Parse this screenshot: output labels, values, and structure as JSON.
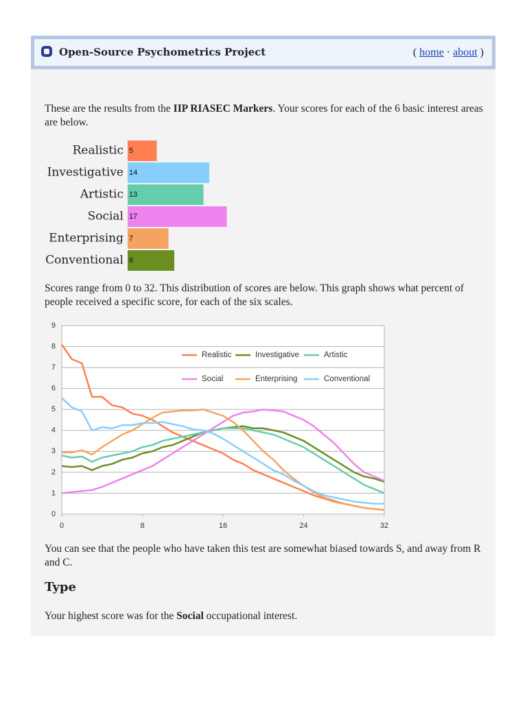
{
  "header": {
    "title": "Open-Source Psychometrics Project",
    "open": "(",
    "home": "home",
    "separator": "·",
    "about": "about",
    "close": ")"
  },
  "intro": {
    "before": "These are the results from the ",
    "bold": "IIP RIASEC Markers",
    "after": ". Your scores for each of the 6 basic interest areas are below."
  },
  "range_text": "Scores range from 0 to 32. This distribution of scores are below. This graph shows what percent of people received a specific score, for each of the six scales.",
  "bias_text": "You can see that the people who have taken this test are somewhat biased towards S, and away from R and C.",
  "type_heading": "Type",
  "result": {
    "before": "Your highest score was for the ",
    "bold": "Social",
    "after": " occupational interest."
  },
  "chart_data": [
    {
      "type": "bar",
      "orientation": "horizontal",
      "categories": [
        "Realistic",
        "Investigative",
        "Artistic",
        "Social",
        "Enterprising",
        "Conventional"
      ],
      "values": [
        5,
        14,
        13,
        17,
        7,
        8
      ],
      "colors": [
        "#ff7f50",
        "#87cefa",
        "#66cdaa",
        "#ee82ee",
        "#f4a460",
        "#6b8e23"
      ],
      "xlim": [
        0,
        32
      ]
    },
    {
      "type": "line",
      "x": [
        0,
        1,
        2,
        3,
        4,
        5,
        6,
        7,
        8,
        9,
        10,
        11,
        12,
        13,
        14,
        15,
        16,
        17,
        18,
        19,
        20,
        21,
        22,
        23,
        24,
        25,
        26,
        27,
        28,
        29,
        30,
        31,
        32
      ],
      "series": [
        {
          "name": "Realistic",
          "color": "#ff7f50",
          "values": [
            8.1,
            7.4,
            7.2,
            5.6,
            5.6,
            5.2,
            5.1,
            4.8,
            4.7,
            4.5,
            4.2,
            3.9,
            3.7,
            3.5,
            3.3,
            3.1,
            2.9,
            2.6,
            2.4,
            2.1,
            1.9,
            1.7,
            1.5,
            1.3,
            1.1,
            0.9,
            0.75,
            0.6,
            0.5,
            0.4,
            0.3,
            0.25,
            0.2
          ]
        },
        {
          "name": "Investigative",
          "color": "#6b8e23",
          "values": [
            2.3,
            2.25,
            2.3,
            2.1,
            2.3,
            2.4,
            2.6,
            2.7,
            2.9,
            3.0,
            3.2,
            3.3,
            3.5,
            3.7,
            3.9,
            4.0,
            4.1,
            4.15,
            4.2,
            4.1,
            4.1,
            4.0,
            3.9,
            3.7,
            3.5,
            3.2,
            2.9,
            2.6,
            2.3,
            2.0,
            1.8,
            1.7,
            1.55
          ]
        },
        {
          "name": "Artistic",
          "color": "#66cdaa",
          "values": [
            2.8,
            2.7,
            2.75,
            2.5,
            2.7,
            2.8,
            2.9,
            3.0,
            3.2,
            3.3,
            3.5,
            3.6,
            3.7,
            3.8,
            3.9,
            4.0,
            4.1,
            4.1,
            4.1,
            4.0,
            3.9,
            3.8,
            3.6,
            3.4,
            3.2,
            2.9,
            2.6,
            2.3,
            2.0,
            1.7,
            1.4,
            1.2,
            1.0
          ]
        },
        {
          "name": "Social",
          "color": "#ee82ee",
          "values": [
            1.0,
            1.05,
            1.1,
            1.15,
            1.3,
            1.5,
            1.7,
            1.9,
            2.1,
            2.3,
            2.6,
            2.9,
            3.2,
            3.5,
            3.8,
            4.1,
            4.4,
            4.7,
            4.85,
            4.9,
            5.0,
            4.95,
            4.9,
            4.7,
            4.5,
            4.2,
            3.8,
            3.4,
            2.9,
            2.4,
            2.0,
            1.8,
            1.6
          ]
        },
        {
          "name": "Enterprising",
          "color": "#f4a460",
          "values": [
            2.95,
            2.95,
            3.05,
            2.85,
            3.2,
            3.5,
            3.8,
            4.0,
            4.3,
            4.6,
            4.85,
            4.9,
            4.95,
            4.95,
            5.0,
            4.85,
            4.7,
            4.4,
            4.0,
            3.5,
            3.0,
            2.6,
            2.1,
            1.7,
            1.35,
            1.05,
            0.8,
            0.65,
            0.5,
            0.4,
            0.3,
            0.25,
            0.2
          ]
        },
        {
          "name": "Conventional",
          "color": "#87cefa",
          "values": [
            5.55,
            5.1,
            4.9,
            4.0,
            4.15,
            4.1,
            4.25,
            4.25,
            4.35,
            4.35,
            4.4,
            4.3,
            4.2,
            4.05,
            4.0,
            3.85,
            3.6,
            3.3,
            3.0,
            2.7,
            2.4,
            2.1,
            1.9,
            1.6,
            1.35,
            1.1,
            0.9,
            0.8,
            0.7,
            0.6,
            0.55,
            0.5,
            0.5
          ]
        }
      ],
      "xlim": [
        0,
        32
      ],
      "xticks": [
        0,
        8,
        16,
        24,
        32
      ],
      "ylim": [
        0,
        9
      ],
      "yticks": [
        0,
        1,
        2,
        3,
        4,
        5,
        6,
        7,
        8,
        9
      ],
      "grid": true,
      "legend": "top-right"
    }
  ]
}
